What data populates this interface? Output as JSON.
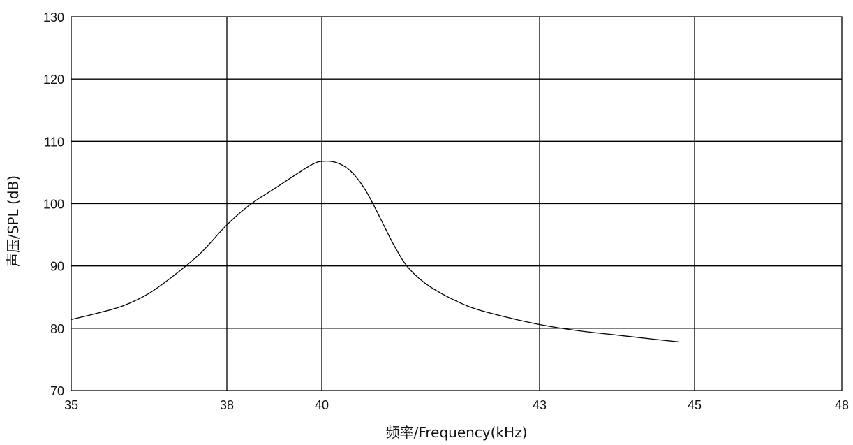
{
  "chart_data": {
    "type": "line",
    "title": "",
    "xlabel": "频率/Frequency(kHz)",
    "ylabel": "声压/SPL (dB)",
    "xlim": [
      35,
      48
    ],
    "ylim": [
      70,
      130
    ],
    "x_ticks": [
      35,
      38,
      40,
      43,
      45,
      48
    ],
    "x_tick_labels": [
      "35",
      "38",
      "40",
      "43",
      "45",
      "48"
    ],
    "y_ticks": [
      70,
      80,
      90,
      100,
      110,
      120,
      130
    ],
    "y_tick_labels": [
      "70",
      "80",
      "90",
      "100",
      "110",
      "120",
      "130"
    ],
    "grid": true,
    "legend": "none",
    "series": [
      {
        "name": "",
        "color": "#000000",
        "points": [
          [
            35.0,
            81.4
          ],
          [
            35.5,
            82.4
          ],
          [
            36.0,
            83.6
          ],
          [
            36.5,
            85.6
          ],
          [
            37.0,
            88.6
          ],
          [
            37.5,
            92.1
          ],
          [
            38.0,
            96.6
          ],
          [
            38.5,
            99.9
          ],
          [
            39.0,
            102.4
          ],
          [
            39.5,
            104.9
          ],
          [
            39.8,
            106.3
          ],
          [
            40.0,
            106.8
          ],
          [
            40.2,
            106.6
          ],
          [
            40.4,
            105.2
          ],
          [
            40.6,
            102.2
          ],
          [
            40.8,
            97.8
          ],
          [
            41.0,
            93.2
          ],
          [
            41.2,
            89.6
          ],
          [
            41.5,
            86.6
          ],
          [
            42.0,
            83.6
          ],
          [
            42.5,
            81.9
          ],
          [
            43.0,
            80.6
          ],
          [
            43.5,
            79.6
          ],
          [
            44.0,
            78.9
          ],
          [
            44.5,
            78.2
          ],
          [
            44.8,
            77.8
          ]
        ]
      }
    ]
  }
}
